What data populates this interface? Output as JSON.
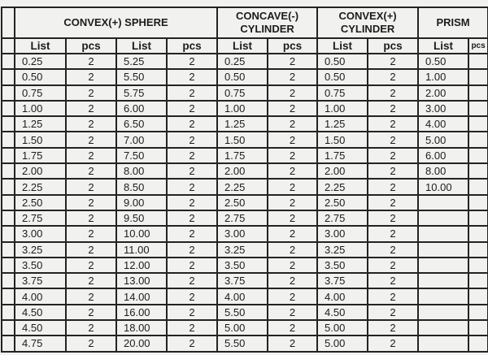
{
  "sections": [
    {
      "title": "CONVEX(+) SPHERE"
    },
    {
      "title": "CONCAVE(-) CYLINDER"
    },
    {
      "title": "CONVEX(+) CYLINDER"
    },
    {
      "title": "PRISM"
    }
  ],
  "col_headers": {
    "list": "List",
    "pcs": "pcs"
  },
  "rows": [
    [
      "0.25",
      "2",
      "5.25",
      "2",
      "0.25",
      "2",
      "0.50",
      "2",
      "0.50",
      ""
    ],
    [
      "0.50",
      "2",
      "5.50",
      "2",
      "0.50",
      "2",
      "0.50",
      "2",
      "1.00",
      ""
    ],
    [
      "0.75",
      "2",
      "5.75",
      "2",
      "0.75",
      "2",
      "0.75",
      "2",
      "2.00",
      ""
    ],
    [
      "1.00",
      "2",
      "6.00",
      "2",
      "1.00",
      "2",
      "1.00",
      "2",
      "3.00",
      ""
    ],
    [
      "1.25",
      "2",
      "6.50",
      "2",
      "1.25",
      "2",
      "1.25",
      "2",
      "4.00",
      ""
    ],
    [
      "1.50",
      "2",
      "7.00",
      "2",
      "1.50",
      "2",
      "1.50",
      "2",
      "5.00",
      ""
    ],
    [
      "1.75",
      "2",
      "7.50",
      "2",
      "1.75",
      "2",
      "1.75",
      "2",
      "6.00",
      ""
    ],
    [
      "2.00",
      "2",
      "8.00",
      "2",
      "2.00",
      "2",
      "2.00",
      "2",
      "8.00",
      ""
    ],
    [
      "2.25",
      "2",
      "8.50",
      "2",
      "2.25",
      "2",
      "2.25",
      "2",
      "10.00",
      ""
    ],
    [
      "2.50",
      "2",
      "9.00",
      "2",
      "2.50",
      "2",
      "2.50",
      "2",
      "",
      ""
    ],
    [
      "2.75",
      "2",
      "9.50",
      "2",
      "2.75",
      "2",
      "2.75",
      "2",
      "",
      ""
    ],
    [
      "3.00",
      "2",
      "10.00",
      "2",
      "3.00",
      "2",
      "3.00",
      "2",
      "",
      ""
    ],
    [
      "3.25",
      "2",
      "11.00",
      "2",
      "3.25",
      "2",
      "3.25",
      "2",
      "",
      ""
    ],
    [
      "3.50",
      "2",
      "12.00",
      "2",
      "3.50",
      "2",
      "3.50",
      "2",
      "",
      ""
    ],
    [
      "3.75",
      "2",
      "13.00",
      "2",
      "3.75",
      "2",
      "3.75",
      "2",
      "",
      ""
    ],
    [
      "4.00",
      "2",
      "14.00",
      "2",
      "4.00",
      "2",
      "4.00",
      "2",
      "",
      ""
    ],
    [
      "4.50",
      "2",
      "16.00",
      "2",
      "5.50",
      "2",
      "4.50",
      "2",
      "",
      ""
    ],
    [
      "4.50",
      "2",
      "18.00",
      "2",
      "5.00",
      "2",
      "5.00",
      "2",
      "",
      ""
    ],
    [
      "4.75",
      "2",
      "20.00",
      "2",
      "5.50",
      "2",
      "5.00",
      "2",
      "",
      ""
    ]
  ]
}
